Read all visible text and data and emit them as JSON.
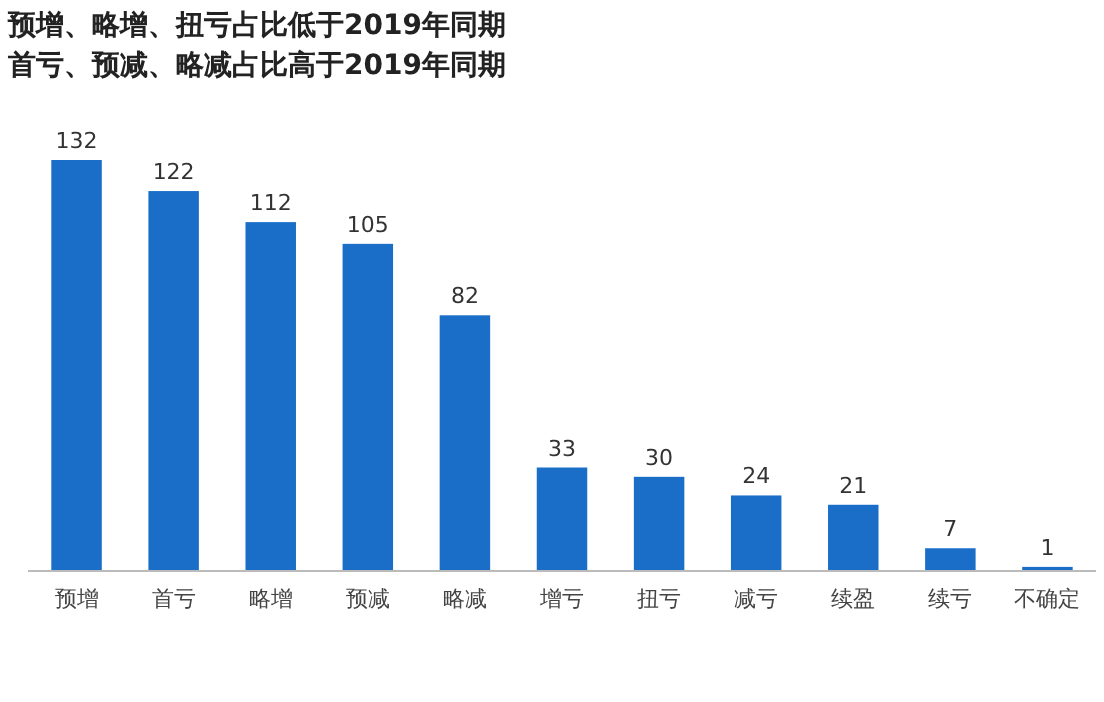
{
  "chart_data": {
    "type": "bar",
    "title": "预增、略增、扭亏占比低于2019年同期",
    "subtitle": "首亏、预减、略减占比高于2019年同期",
    "categories": [
      "预增",
      "首亏",
      "略增",
      "预减",
      "略减",
      "增亏",
      "扭亏",
      "减亏",
      "续盈",
      "续亏",
      "不确定"
    ],
    "values": [
      132,
      122,
      112,
      105,
      82,
      33,
      30,
      24,
      21,
      7,
      1
    ],
    "color": "#1a6ec8",
    "data_labels": true
  }
}
